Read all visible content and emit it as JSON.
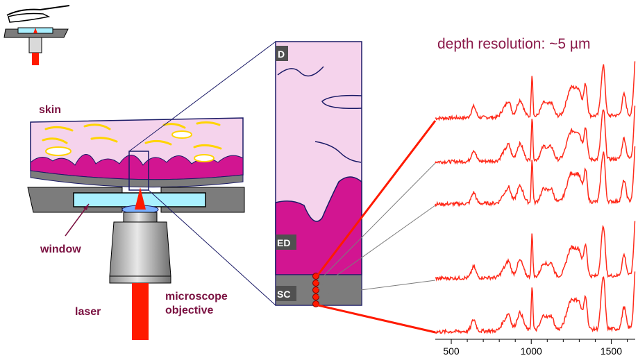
{
  "labels": {
    "skin": "skin",
    "window": "window",
    "laser": "laser",
    "microscope_line1": "microscope",
    "microscope_line2": "objective",
    "layer_d": "D",
    "layer_ed": "ED",
    "layer_sc": "SC"
  },
  "colors": {
    "label": "#7a1040",
    "title": "#8b1a4a",
    "laser": "#ff1a00",
    "spectrum": "#ff2a1a",
    "dermis": "#f5d3ec",
    "epidermis": "#d21591",
    "stratum_corneum": "#7c7c7c",
    "window": "#a9f0ff",
    "outline": "#1a1a66"
  },
  "chart_data": {
    "type": "line",
    "title": "depth resolution: ~5 µm",
    "xlabel": "",
    "ylabel": "",
    "xlim": [
      400,
      1650
    ],
    "xticks": [
      "500",
      "1000",
      "1500"
    ],
    "xtick_values": [
      500,
      1000,
      1500
    ],
    "series_count": 5,
    "note_peaks_cm1": [
      640,
      860,
      940,
      1005,
      1250,
      1340,
      1450,
      1655
    ]
  }
}
